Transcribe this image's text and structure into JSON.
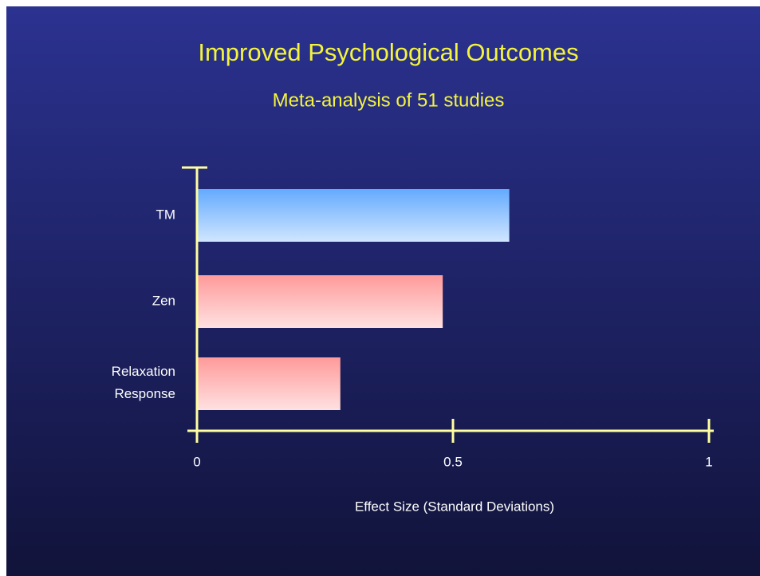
{
  "chart_data": {
    "type": "barh",
    "title": "Improved Psychological Outcomes",
    "subtitle": "Meta-analysis of 51 studies",
    "x_label": "Effect Size (Standard Deviations)",
    "categories": [
      "TM",
      "Zen",
      "Relaxation Response"
    ],
    "values": [
      0.61,
      0.48,
      0.28
    ],
    "colors": [
      "#63aaff",
      "#ff9a9a",
      "#ff9a9a"
    ],
    "xlim": [
      0,
      1
    ],
    "xticks": [
      0,
      0.5,
      1
    ]
  }
}
